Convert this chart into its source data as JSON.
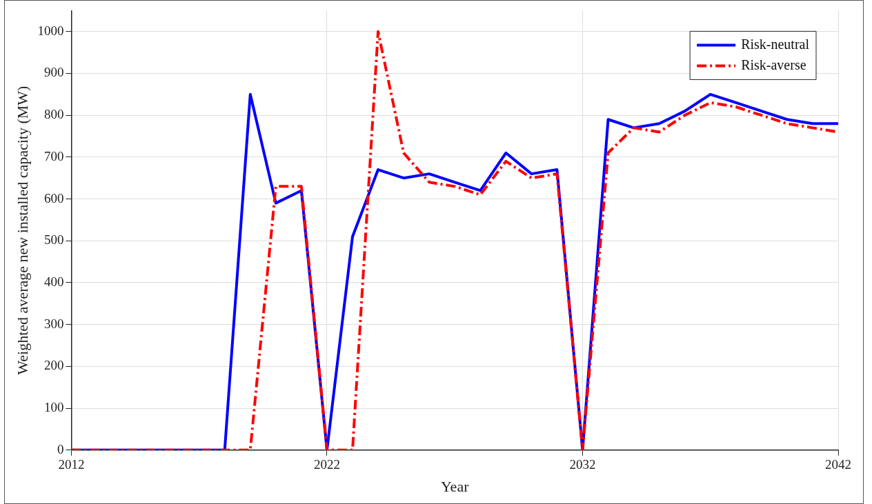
{
  "chart_data": {
    "type": "line",
    "xlabel": "Year",
    "ylabel": "Weighted average new installed capacity (MW)",
    "x": [
      2012,
      2013,
      2014,
      2015,
      2016,
      2017,
      2018,
      2019,
      2020,
      2021,
      2022,
      2023,
      2024,
      2025,
      2026,
      2027,
      2028,
      2029,
      2030,
      2031,
      2032,
      2033,
      2034,
      2035,
      2036,
      2037,
      2038,
      2039,
      2040,
      2041,
      2042
    ],
    "series": [
      {
        "name": "Risk-neutral",
        "color": "#0000ff",
        "line_style": "solid",
        "values": [
          0,
          0,
          0,
          0,
          0,
          0,
          0,
          850,
          590,
          620,
          0,
          510,
          670,
          650,
          660,
          640,
          620,
          710,
          660,
          670,
          0,
          790,
          770,
          780,
          810,
          850,
          830,
          810,
          790,
          780,
          780
        ]
      },
      {
        "name": "Risk-averse",
        "color": "#ff0000",
        "line_style": "dashed",
        "values": [
          0,
          0,
          0,
          0,
          0,
          0,
          0,
          0,
          630,
          630,
          0,
          0,
          1000,
          710,
          640,
          630,
          610,
          690,
          650,
          660,
          0,
          710,
          770,
          760,
          800,
          830,
          820,
          800,
          780,
          770,
          760
        ]
      }
    ],
    "xlim": [
      2012,
      2042
    ],
    "xticks": [
      2012,
      2022,
      2032,
      2042
    ],
    "ylim": [
      0,
      1050
    ],
    "yticks": [
      0,
      100,
      200,
      300,
      400,
      500,
      600,
      700,
      800,
      900,
      1000
    ],
    "grid": true,
    "legend": "top right",
    "marker": "none"
  }
}
